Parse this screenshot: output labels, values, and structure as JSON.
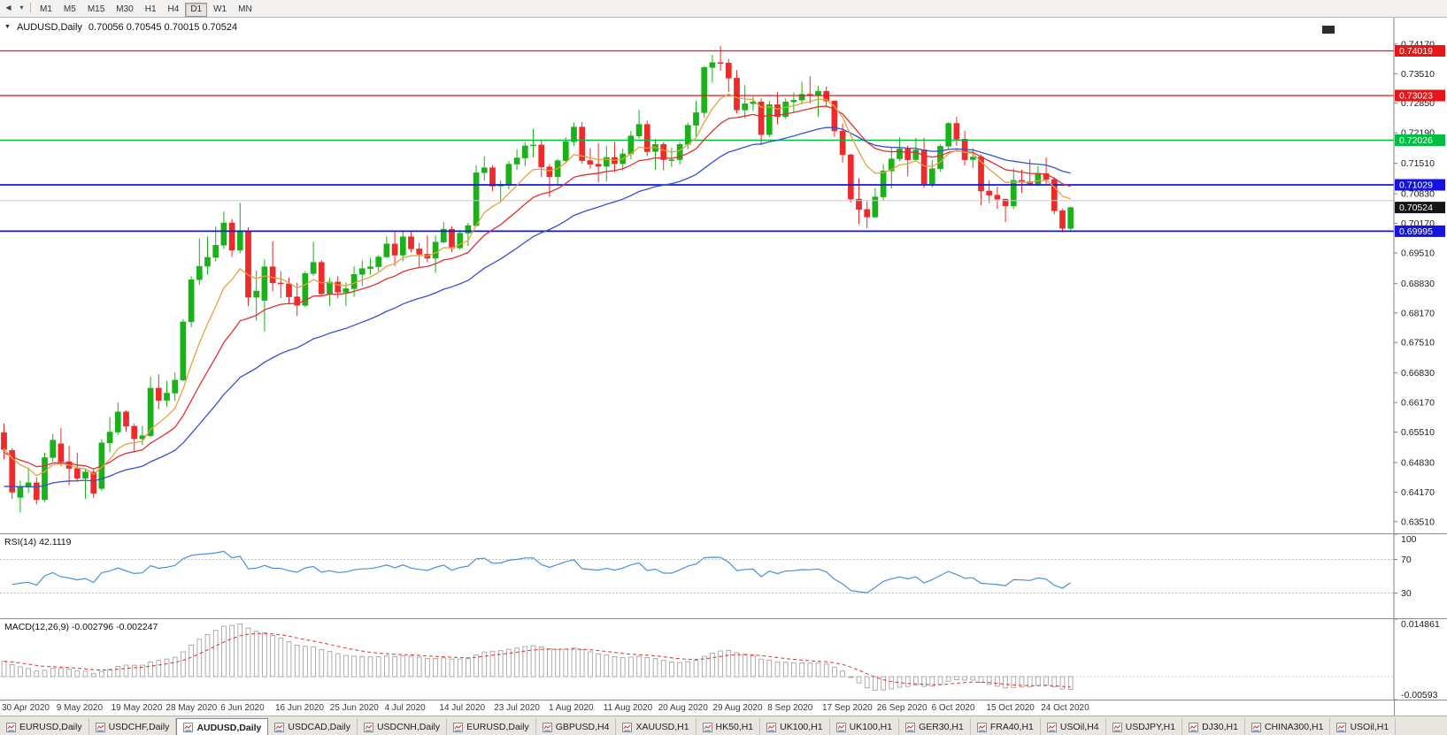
{
  "toolbar": {
    "timeframes": [
      "M1",
      "M5",
      "M15",
      "M30",
      "H1",
      "H4",
      "D1",
      "W1",
      "MN"
    ],
    "active_timeframe": "D1",
    "icons": [
      {
        "name": "chart-scroll-left-icon",
        "glyph": "◀"
      },
      {
        "name": "chevron-down-icon",
        "glyph": "▾"
      }
    ]
  },
  "chart": {
    "title_symbol": "AUDUSD,Daily",
    "title_ohlc": "0.70056 0.70545 0.70015 0.70524",
    "collapse_glyph": "▼"
  },
  "chart_data": {
    "type": "candlestick",
    "symbol": "AUDUSD",
    "timeframe": "Daily",
    "ylim": [
      0.6325,
      0.7476
    ],
    "y_ticks": [
      "0.74170",
      "0.73510",
      "0.72850",
      "0.72190",
      "0.71510",
      "0.70830",
      "0.70170",
      "0.69510",
      "0.68830",
      "0.68170",
      "0.67510",
      "0.66830",
      "0.66170",
      "0.65510",
      "0.64830",
      "0.64170",
      "0.63510"
    ],
    "x_tick_labels": [
      "30 Apr 2020",
      "9 May 2020",
      "19 May 2020",
      "28 May 2020",
      "6 Jun 2020",
      "16 Jun 2020",
      "25 Jun 2020",
      "4 Jul 2020",
      "14 Jul 2020",
      "23 Jul 2020",
      "1 Aug 2020",
      "11 Aug 2020",
      "20 Aug 2020",
      "29 Aug 2020",
      "8 Sep 2020",
      "17 Sep 2020",
      "26 Sep 2020",
      "6 Oct 2020",
      "15 Oct 2020",
      "24 Oct 2020"
    ],
    "colors": {
      "up": "#19b219",
      "down": "#ee2a2a"
    },
    "hlines": [
      {
        "price": 0.74019,
        "label": "0.74019",
        "color": "#e81616",
        "width": 1.2
      },
      {
        "price": 0.73023,
        "label": "0.73023",
        "color": "#e81616",
        "width": 1.2
      },
      {
        "price": 0.72026,
        "label": "0.72026",
        "color": "#00bf40",
        "width": 1.5
      },
      {
        "price": 0.71029,
        "label": "0.71029",
        "color": "#1414e0",
        "width": 1.8
      },
      {
        "price": 0.69995,
        "label": "0.69995",
        "color": "#1414e0",
        "width": 1.8
      },
      {
        "price": 0.7068,
        "label": null,
        "color": "#c9c9c9",
        "width": 1
      }
    ],
    "current_price": {
      "price": 0.70524,
      "label": "0.70524",
      "color": "#161616"
    },
    "overlays": [
      {
        "name": "ma-slow-blue",
        "period": 34,
        "seed": 0.6425,
        "color": "#3352cc"
      },
      {
        "name": "ma-mid-red",
        "period": 17,
        "seed": 0.6505,
        "color": "#e03030"
      },
      {
        "name": "ma-fast-orange",
        "period": 8,
        "seed": 0.6515,
        "color": "#e6a23c"
      }
    ],
    "rsi": {
      "label": "RSI(14) 42.1119",
      "period": 14,
      "value": "42.1119",
      "color": "#4a90d9",
      "levels": [
        70,
        30
      ],
      "axis": [
        {
          "t": "100",
          "v": 100
        },
        {
          "t": "70",
          "v": 70
        },
        {
          "t": "30",
          "v": 30
        }
      ]
    },
    "macd": {
      "label": "MACD(12,26,9) -0.002796 -0.002247",
      "values": "-0.002796 -0.002247",
      "fast": 12,
      "slow": 26,
      "signal": 9,
      "range": [
        -0.00593,
        0.014861
      ],
      "ema_seeds": [
        0.648,
        0.644
      ],
      "bar_color": "#9a9a9a",
      "signal_color": "#e03030",
      "axis": [
        {
          "t": "0.014861",
          "v": 0.014861
        },
        {
          "t": "-0.00593",
          "v": -0.00593
        }
      ]
    },
    "candles": [
      [
        0.655,
        0.657,
        0.649,
        0.6512
      ],
      [
        0.651,
        0.6515,
        0.6402,
        0.6417
      ],
      [
        0.6405,
        0.6443,
        0.6372,
        0.6428
      ],
      [
        0.6428,
        0.6472,
        0.6415,
        0.6438
      ],
      [
        0.6438,
        0.645,
        0.639,
        0.64
      ],
      [
        0.64,
        0.6505,
        0.6395,
        0.6494
      ],
      [
        0.6494,
        0.6547,
        0.6485,
        0.6533
      ],
      [
        0.6525,
        0.656,
        0.6475,
        0.6485
      ],
      [
        0.6485,
        0.652,
        0.6432,
        0.647
      ],
      [
        0.647,
        0.6505,
        0.644,
        0.6448
      ],
      [
        0.6448,
        0.647,
        0.6402,
        0.6462
      ],
      [
        0.6462,
        0.647,
        0.6404,
        0.6414
      ],
      [
        0.6425,
        0.6535,
        0.642,
        0.6527
      ],
      [
        0.6527,
        0.6585,
        0.6506,
        0.6551
      ],
      [
        0.6551,
        0.6617,
        0.6545,
        0.6596
      ],
      [
        0.6596,
        0.66,
        0.6552,
        0.6564
      ],
      [
        0.6564,
        0.657,
        0.6506,
        0.6536
      ],
      [
        0.6536,
        0.6565,
        0.6522,
        0.6543
      ],
      [
        0.6543,
        0.6675,
        0.654,
        0.6649
      ],
      [
        0.6649,
        0.668,
        0.6602,
        0.6622
      ],
      [
        0.6622,
        0.6665,
        0.6608,
        0.6638
      ],
      [
        0.6638,
        0.6684,
        0.662,
        0.6667
      ],
      [
        0.6667,
        0.6803,
        0.6665,
        0.6797
      ],
      [
        0.6797,
        0.6899,
        0.6785,
        0.6891
      ],
      [
        0.6891,
        0.6983,
        0.688,
        0.6921
      ],
      [
        0.6921,
        0.6988,
        0.6902,
        0.6941
      ],
      [
        0.6941,
        0.701,
        0.6932,
        0.6968
      ],
      [
        0.6968,
        0.7043,
        0.696,
        0.7018
      ],
      [
        0.7018,
        0.7027,
        0.6942,
        0.6957
      ],
      [
        0.6957,
        0.7063,
        0.695,
        0.7
      ],
      [
        0.7,
        0.7008,
        0.6832,
        0.6852
      ],
      [
        0.6852,
        0.6912,
        0.68,
        0.6866
      ],
      [
        0.6845,
        0.6936,
        0.6776,
        0.692
      ],
      [
        0.692,
        0.6977,
        0.6865,
        0.6884
      ],
      [
        0.6884,
        0.691,
        0.685,
        0.6882
      ],
      [
        0.6882,
        0.6896,
        0.6837,
        0.6853
      ],
      [
        0.6853,
        0.6885,
        0.681,
        0.6834
      ],
      [
        0.6834,
        0.691,
        0.683,
        0.6905
      ],
      [
        0.6905,
        0.6976,
        0.69,
        0.693
      ],
      [
        0.693,
        0.6935,
        0.6855,
        0.686
      ],
      [
        0.686,
        0.6895,
        0.6833,
        0.6886
      ],
      [
        0.6886,
        0.6899,
        0.685,
        0.6863
      ],
      [
        0.6863,
        0.6885,
        0.6832,
        0.6871
      ],
      [
        0.6871,
        0.6921,
        0.6853,
        0.6903
      ],
      [
        0.6903,
        0.6934,
        0.6877,
        0.6916
      ],
      [
        0.6916,
        0.694,
        0.6902,
        0.692
      ],
      [
        0.692,
        0.6946,
        0.691,
        0.6942
      ],
      [
        0.6942,
        0.6988,
        0.694,
        0.6971
      ],
      [
        0.6971,
        0.6998,
        0.6922,
        0.6946
      ],
      [
        0.6946,
        0.6999,
        0.6932,
        0.6987
      ],
      [
        0.6987,
        0.7001,
        0.6952,
        0.696
      ],
      [
        0.696,
        0.6973,
        0.692,
        0.6948
      ],
      [
        0.6948,
        0.699,
        0.693,
        0.6939
      ],
      [
        0.6939,
        0.699,
        0.6906,
        0.6975
      ],
      [
        0.6975,
        0.702,
        0.6972,
        0.7004
      ],
      [
        0.7004,
        0.7011,
        0.6953,
        0.6962
      ],
      [
        0.6962,
        0.7002,
        0.6958,
        0.6995
      ],
      [
        0.6995,
        0.7018,
        0.6966,
        0.7012
      ],
      [
        0.7012,
        0.7146,
        0.701,
        0.713
      ],
      [
        0.713,
        0.7166,
        0.7112,
        0.7141
      ],
      [
        0.7141,
        0.7147,
        0.7088,
        0.71
      ],
      [
        0.71,
        0.7113,
        0.7063,
        0.7104
      ],
      [
        0.7104,
        0.7156,
        0.7093,
        0.7149
      ],
      [
        0.7149,
        0.7182,
        0.7136,
        0.7163
      ],
      [
        0.7163,
        0.7198,
        0.7145,
        0.719
      ],
      [
        0.719,
        0.7228,
        0.7164,
        0.7192
      ],
      [
        0.7192,
        0.7204,
        0.712,
        0.7143
      ],
      [
        0.7143,
        0.7149,
        0.7076,
        0.7121
      ],
      [
        0.7121,
        0.7161,
        0.7101,
        0.7157
      ],
      [
        0.7157,
        0.7209,
        0.7151,
        0.7199
      ],
      [
        0.7199,
        0.7242,
        0.719,
        0.7232
      ],
      [
        0.7232,
        0.7243,
        0.715,
        0.7157
      ],
      [
        0.7157,
        0.7185,
        0.7139,
        0.7149
      ],
      [
        0.7149,
        0.7196,
        0.7109,
        0.7144
      ],
      [
        0.7144,
        0.719,
        0.711,
        0.7164
      ],
      [
        0.7164,
        0.7198,
        0.7131,
        0.715
      ],
      [
        0.715,
        0.7184,
        0.7134,
        0.7172
      ],
      [
        0.7172,
        0.7223,
        0.716,
        0.7212
      ],
      [
        0.7212,
        0.727,
        0.7206,
        0.7238
      ],
      [
        0.7238,
        0.7246,
        0.7167,
        0.7177
      ],
      [
        0.7177,
        0.7205,
        0.7136,
        0.7193
      ],
      [
        0.7193,
        0.7198,
        0.7135,
        0.7159
      ],
      [
        0.7159,
        0.7186,
        0.7143,
        0.7159
      ],
      [
        0.7159,
        0.7198,
        0.7148,
        0.7193
      ],
      [
        0.7193,
        0.7242,
        0.7182,
        0.7236
      ],
      [
        0.7236,
        0.729,
        0.7211,
        0.7264
      ],
      [
        0.7264,
        0.7368,
        0.7252,
        0.7365
      ],
      [
        0.7365,
        0.7393,
        0.7331,
        0.7376
      ],
      [
        0.7376,
        0.7413,
        0.7358,
        0.7375
      ],
      [
        0.7375,
        0.7384,
        0.731,
        0.7341
      ],
      [
        0.7341,
        0.7359,
        0.7262,
        0.727
      ],
      [
        0.727,
        0.7325,
        0.7251,
        0.7284
      ],
      [
        0.7284,
        0.73,
        0.7268,
        0.7288
      ],
      [
        0.7288,
        0.7296,
        0.7192,
        0.7215
      ],
      [
        0.7215,
        0.729,
        0.7209,
        0.7282
      ],
      [
        0.7282,
        0.731,
        0.7238,
        0.7255
      ],
      [
        0.7255,
        0.7296,
        0.725,
        0.7288
      ],
      [
        0.7288,
        0.7309,
        0.7265,
        0.7292
      ],
      [
        0.7292,
        0.7333,
        0.7283,
        0.7305
      ],
      [
        0.7305,
        0.7345,
        0.7284,
        0.7304
      ],
      [
        0.7304,
        0.7324,
        0.7254,
        0.7312
      ],
      [
        0.7312,
        0.7322,
        0.7276,
        0.729
      ],
      [
        0.729,
        0.7292,
        0.721,
        0.7223
      ],
      [
        0.7223,
        0.724,
        0.7153,
        0.717
      ],
      [
        0.717,
        0.7172,
        0.7063,
        0.7071
      ],
      [
        0.7071,
        0.7118,
        0.7016,
        0.7048
      ],
      [
        0.7048,
        0.7066,
        0.7006,
        0.7031
      ],
      [
        0.7031,
        0.7096,
        0.7029,
        0.7076
      ],
      [
        0.7076,
        0.7149,
        0.7069,
        0.7134
      ],
      [
        0.7134,
        0.7185,
        0.7095,
        0.7161
      ],
      [
        0.7161,
        0.7209,
        0.7156,
        0.7183
      ],
      [
        0.7183,
        0.7191,
        0.7122,
        0.7159
      ],
      [
        0.7159,
        0.7208,
        0.7157,
        0.7181
      ],
      [
        0.7181,
        0.7208,
        0.7096,
        0.7105
      ],
      [
        0.7105,
        0.7158,
        0.7097,
        0.7139
      ],
      [
        0.7139,
        0.7193,
        0.7133,
        0.7189
      ],
      [
        0.7189,
        0.7243,
        0.7182,
        0.724
      ],
      [
        0.724,
        0.7255,
        0.719,
        0.7205
      ],
      [
        0.7205,
        0.7223,
        0.7146,
        0.7159
      ],
      [
        0.7159,
        0.7185,
        0.7141,
        0.7165
      ],
      [
        0.7165,
        0.717,
        0.7057,
        0.7089
      ],
      [
        0.7089,
        0.7113,
        0.7062,
        0.708
      ],
      [
        0.708,
        0.7099,
        0.7049,
        0.7071
      ],
      [
        0.7071,
        0.7072,
        0.702,
        0.7056
      ],
      [
        0.7056,
        0.7139,
        0.7049,
        0.7113
      ],
      [
        0.7113,
        0.7137,
        0.7085,
        0.711
      ],
      [
        0.711,
        0.716,
        0.7101,
        0.7104
      ],
      [
        0.7104,
        0.7145,
        0.71,
        0.7128
      ],
      [
        0.7128,
        0.7164,
        0.7105,
        0.7115
      ],
      [
        0.7115,
        0.712,
        0.7037,
        0.7045
      ],
      [
        0.7045,
        0.7049,
        0.6997,
        0.7006
      ],
      [
        0.70056,
        0.70545,
        0.70015,
        0.70524
      ]
    ]
  },
  "tabs": {
    "items": [
      "EURUSD,Daily",
      "USDCHF,Daily",
      "AUDUSD,Daily",
      "USDCAD,Daily",
      "USDCNH,Daily",
      "EURUSD,Daily",
      "GBPUSD,H4",
      "XAUUSD,H1",
      "HK50,H1",
      "UK100,H1",
      "UK100,H1",
      "GER30,H1",
      "FRA40,H1",
      "USOil,H4",
      "USDJPY,H1",
      "DJ30,H1",
      "CHINA300,H1",
      "USOil,H1"
    ],
    "active_index": 2
  }
}
